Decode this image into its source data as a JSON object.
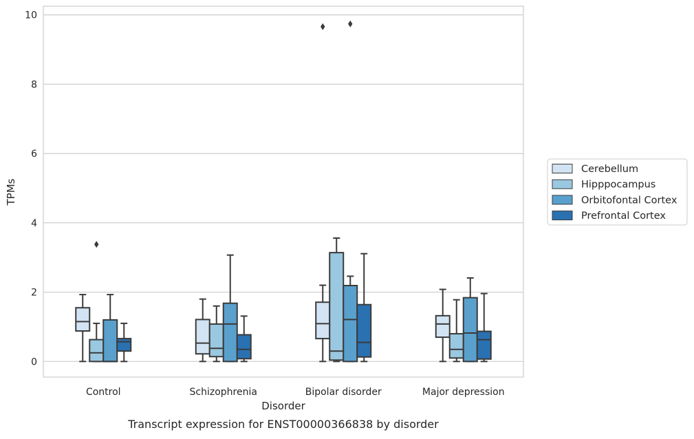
{
  "chart_data": {
    "type": "box",
    "xlabel": "Disorder",
    "ylabel": "TPMs",
    "caption": "Transcript expression for ENST00000366838 by disorder",
    "ylim": [
      -0.45,
      10.25
    ],
    "yticks": [
      0,
      2,
      4,
      6,
      8,
      10
    ],
    "grid": true,
    "legend_position": "right",
    "categories": [
      "Control",
      "Schizophrenia",
      "Bipolar disorder",
      "Major depression"
    ],
    "series": [
      {
        "name": "Cerebellum",
        "color": "#d2e3f3",
        "boxes": [
          {
            "min": 0.0,
            "q1": 0.88,
            "median": 1.15,
            "q3": 1.55,
            "max": 1.93,
            "outliers": []
          },
          {
            "min": 0.0,
            "q1": 0.22,
            "median": 0.53,
            "q3": 1.21,
            "max": 1.8,
            "outliers": []
          },
          {
            "min": 0.0,
            "q1": 0.66,
            "median": 1.09,
            "q3": 1.71,
            "max": 2.2,
            "outliers": [
              9.66
            ]
          },
          {
            "min": 0.0,
            "q1": 0.7,
            "median": 1.08,
            "q3": 1.32,
            "max": 2.08,
            "outliers": []
          }
        ]
      },
      {
        "name": "Hipppocampus",
        "color": "#9ac8e0",
        "boxes": [
          {
            "min": 0.0,
            "q1": 0.0,
            "median": 0.25,
            "q3": 0.63,
            "max": 1.1,
            "outliers": [
              3.38
            ]
          },
          {
            "min": 0.0,
            "q1": 0.14,
            "median": 0.38,
            "q3": 1.08,
            "max": 1.6,
            "outliers": []
          },
          {
            "min": 0.0,
            "q1": 0.04,
            "median": 0.3,
            "q3": 3.14,
            "max": 3.56,
            "outliers": []
          },
          {
            "min": 0.0,
            "q1": 0.1,
            "median": 0.35,
            "q3": 0.8,
            "max": 1.78,
            "outliers": []
          }
        ]
      },
      {
        "name": "Orbitofontal Cortex",
        "color": "#5aa0cd",
        "boxes": [
          {
            "min": 0.0,
            "q1": 0.0,
            "median": 0.0,
            "q3": 1.2,
            "max": 1.93,
            "outliers": []
          },
          {
            "min": 0.0,
            "q1": 0.0,
            "median": 1.08,
            "q3": 1.68,
            "max": 3.07,
            "outliers": []
          },
          {
            "min": 0.0,
            "q1": 0.0,
            "median": 1.21,
            "q3": 2.19,
            "max": 2.46,
            "outliers": [
              9.74
            ]
          },
          {
            "min": 0.0,
            "q1": 0.0,
            "median": 0.82,
            "q3": 1.84,
            "max": 2.41,
            "outliers": []
          }
        ]
      },
      {
        "name": "Prefrontal Cortex",
        "color": "#2a71b1",
        "boxes": [
          {
            "min": 0.0,
            "q1": 0.3,
            "median": 0.57,
            "q3": 0.66,
            "max": 1.1,
            "outliers": []
          },
          {
            "min": 0.0,
            "q1": 0.08,
            "median": 0.35,
            "q3": 0.77,
            "max": 1.31,
            "outliers": []
          },
          {
            "min": 0.0,
            "q1": 0.13,
            "median": 0.55,
            "q3": 1.64,
            "max": 3.11,
            "outliers": []
          },
          {
            "min": 0.0,
            "q1": 0.07,
            "median": 0.63,
            "q3": 0.87,
            "max": 1.96,
            "outliers": []
          }
        ]
      }
    ]
  }
}
